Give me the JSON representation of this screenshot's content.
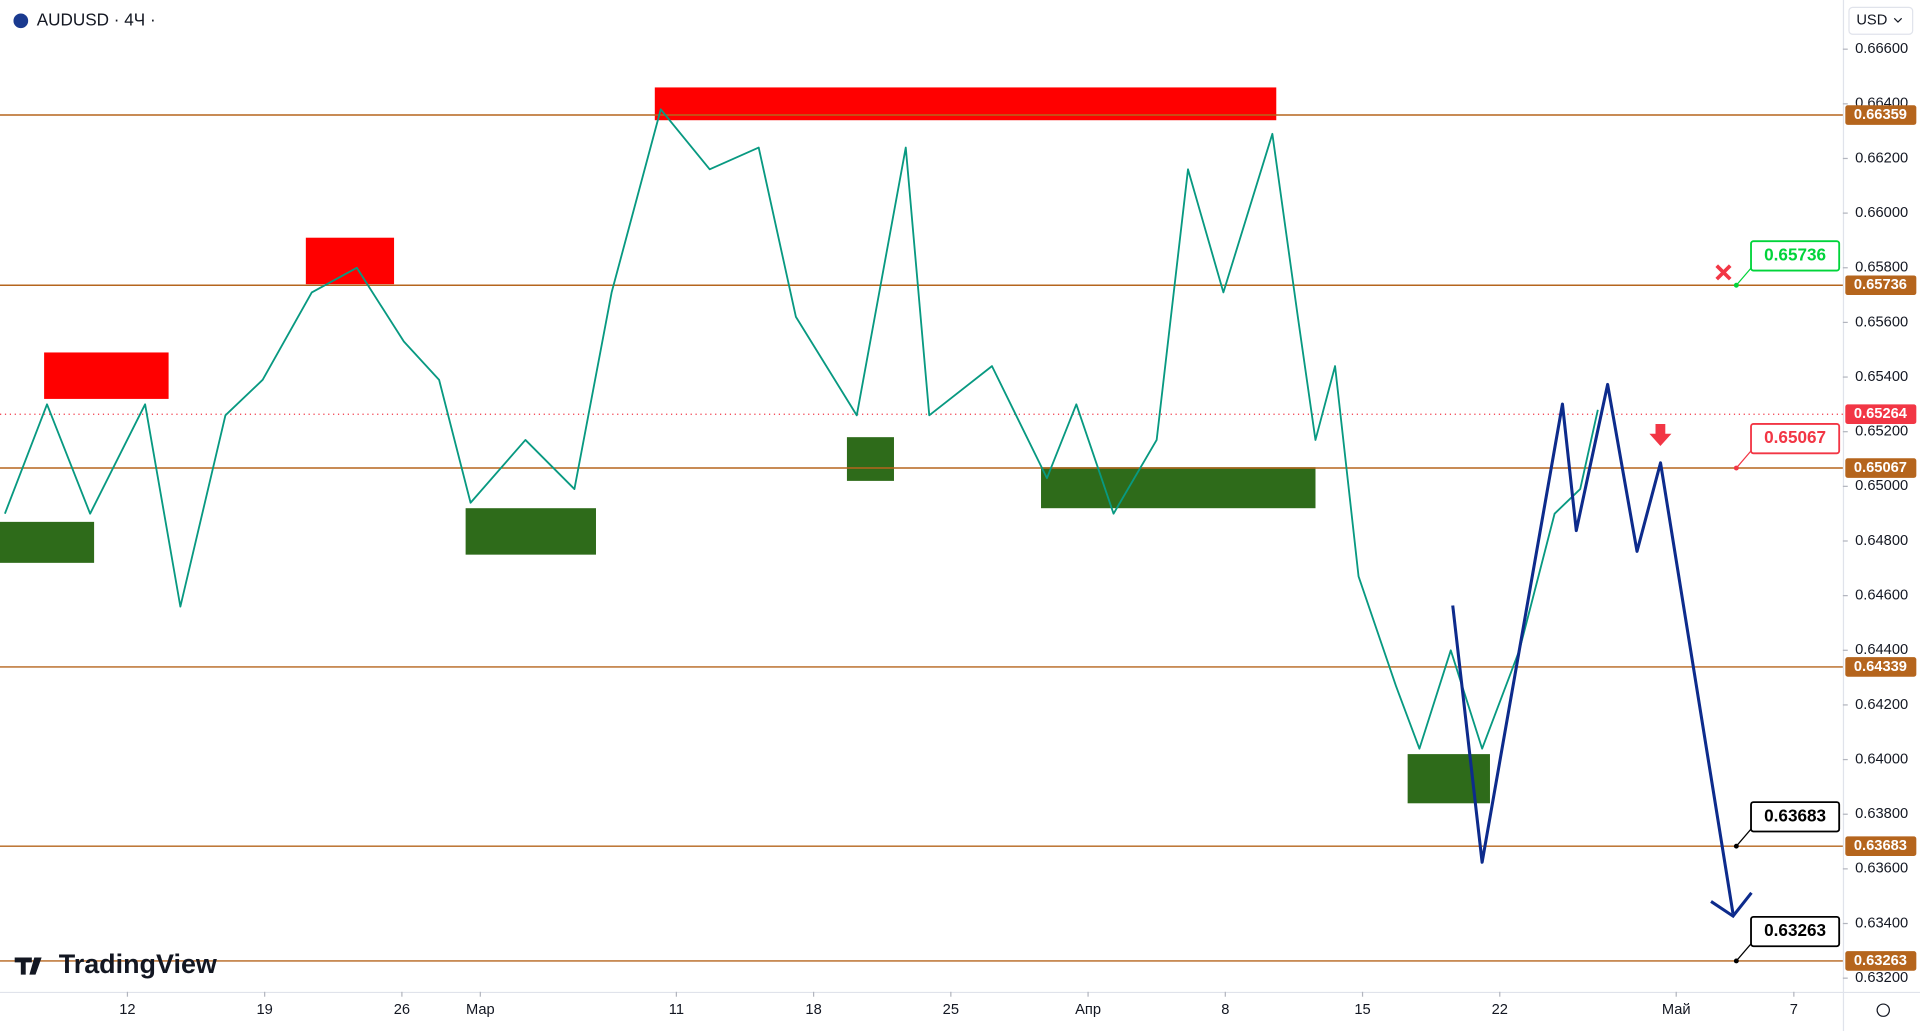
{
  "chart_data": {
    "type": "line",
    "title": "AUDUSD · 4Ч ·",
    "currency": "USD",
    "watermark": "TradingView",
    "xlim": [
      -6.5,
      87.5
    ],
    "xticks": [
      {
        "value": 0,
        "label": "12"
      },
      {
        "value": 7,
        "label": "19"
      },
      {
        "value": 14,
        "label": "26"
      },
      {
        "value": 18,
        "label": "Мар"
      },
      {
        "value": 28,
        "label": "11"
      },
      {
        "value": 35,
        "label": "18"
      },
      {
        "value": 42,
        "label": "25"
      },
      {
        "value": 49,
        "label": "Апр"
      },
      {
        "value": 56,
        "label": "8"
      },
      {
        "value": 63,
        "label": "15"
      },
      {
        "value": 70,
        "label": "22"
      },
      {
        "value": 79,
        "label": "Май"
      },
      {
        "value": 85,
        "label": "7"
      }
    ],
    "ylim": [
      0.6315,
      0.6678
    ],
    "yticks": [
      {
        "value": 0.632,
        "label": "0.63200"
      },
      {
        "value": 0.634,
        "label": "0.63400"
      },
      {
        "value": 0.636,
        "label": "0.63600"
      },
      {
        "value": 0.638,
        "label": "0.63800"
      },
      {
        "value": 0.64,
        "label": "0.64000"
      },
      {
        "value": 0.642,
        "label": "0.64200"
      },
      {
        "value": 0.644,
        "label": "0.64400"
      },
      {
        "value": 0.646,
        "label": "0.64600"
      },
      {
        "value": 0.648,
        "label": "0.64800"
      },
      {
        "value": 0.65,
        "label": "0.65000"
      },
      {
        "value": 0.652,
        "label": "0.65200"
      },
      {
        "value": 0.654,
        "label": "0.65400"
      },
      {
        "value": 0.656,
        "label": "0.65600"
      },
      {
        "value": 0.658,
        "label": "0.65800"
      },
      {
        "value": 0.66,
        "label": "0.66000"
      },
      {
        "value": 0.662,
        "label": "0.66200"
      },
      {
        "value": 0.664,
        "label": "0.66400"
      },
      {
        "value": 0.666,
        "label": "0.66600"
      }
    ],
    "grid": false,
    "price": {
      "color": "#089981",
      "x": [
        -6.25,
        -4.1,
        -1.9,
        0.9,
        2.7,
        5,
        6.9,
        9.4,
        11.7,
        14.1,
        15.9,
        17.5,
        20.3,
        22.8,
        24.7,
        27.2,
        29.7,
        32.2,
        34.1,
        37.2,
        39.7,
        40.9,
        44.1,
        46.9,
        48.4,
        50.3,
        52.5,
        54.1,
        55.9,
        58.4,
        59.7,
        60.6,
        61.6,
        62.8,
        64.7,
        65.9,
        67.5,
        69.1,
        71,
        72.8,
        74.1,
        75
      ],
      "values": [
        0.649,
        0.653,
        0.649,
        0.653,
        0.6456,
        0.6526,
        0.6539,
        0.6571,
        0.658,
        0.6553,
        0.6539,
        0.6494,
        0.6517,
        0.6499,
        0.6571,
        0.6638,
        0.6616,
        0.6624,
        0.6562,
        0.6526,
        0.6624,
        0.6526,
        0.6544,
        0.6503,
        0.653,
        0.649,
        0.6517,
        0.6616,
        0.6571,
        0.6629,
        0.6562,
        0.6517,
        0.6544,
        0.6467,
        0.6427,
        0.6404,
        0.644,
        0.6404,
        0.644,
        0.649,
        0.6499,
        0.6528
      ]
    },
    "projection": {
      "color": "#0d2b8c",
      "x": [
        67.6,
        69.1,
        73.2,
        73.9,
        75.5,
        77,
        78.2,
        81.9
      ],
      "values": [
        0.64564,
        0.63624,
        0.65301,
        0.64838,
        0.65373,
        0.64762,
        0.65086,
        0.63436
      ]
    },
    "zones": [
      {
        "x": [
          -4.25,
          2.1
        ],
        "y": [
          0.6532,
          0.6549
        ],
        "color": "#ff0000"
      },
      {
        "x": [
          9.1,
          13.6
        ],
        "y": [
          0.6574,
          0.6591
        ],
        "color": "#ff0000"
      },
      {
        "x": [
          26.9,
          58.6
        ],
        "y": [
          0.6634,
          0.6646
        ],
        "color": "#ff0000"
      },
      {
        "x": [
          -6.6,
          -1.7
        ],
        "y": [
          0.6472,
          0.6487
        ],
        "color": "#2e6b1a"
      },
      {
        "x": [
          17.25,
          23.9
        ],
        "y": [
          0.6475,
          0.6492
        ],
        "color": "#2e6b1a"
      },
      {
        "x": [
          36.7,
          39.1
        ],
        "y": [
          0.6502,
          0.6518
        ],
        "color": "#2e6b1a"
      },
      {
        "x": [
          46.6,
          60.6
        ],
        "y": [
          0.6492,
          0.6507
        ],
        "color": "#2e6b1a"
      },
      {
        "x": [
          65.3,
          69.5
        ],
        "y": [
          0.6384,
          0.6402
        ],
        "color": "#2e6b1a"
      }
    ],
    "levels": [
      0.66359,
      0.65736,
      0.65067,
      0.64339,
      0.63683,
      0.63263
    ],
    "level_color": "#b5651d",
    "last_price": 0.65264,
    "last_price_color": "#f23645",
    "callouts": [
      {
        "value": 0.65736,
        "color": "#00d43a"
      },
      {
        "value": 0.65067,
        "color": "#f23645"
      },
      {
        "value": 0.63683,
        "color": "#000000"
      },
      {
        "value": 0.63263,
        "color": "#000000"
      }
    ]
  }
}
